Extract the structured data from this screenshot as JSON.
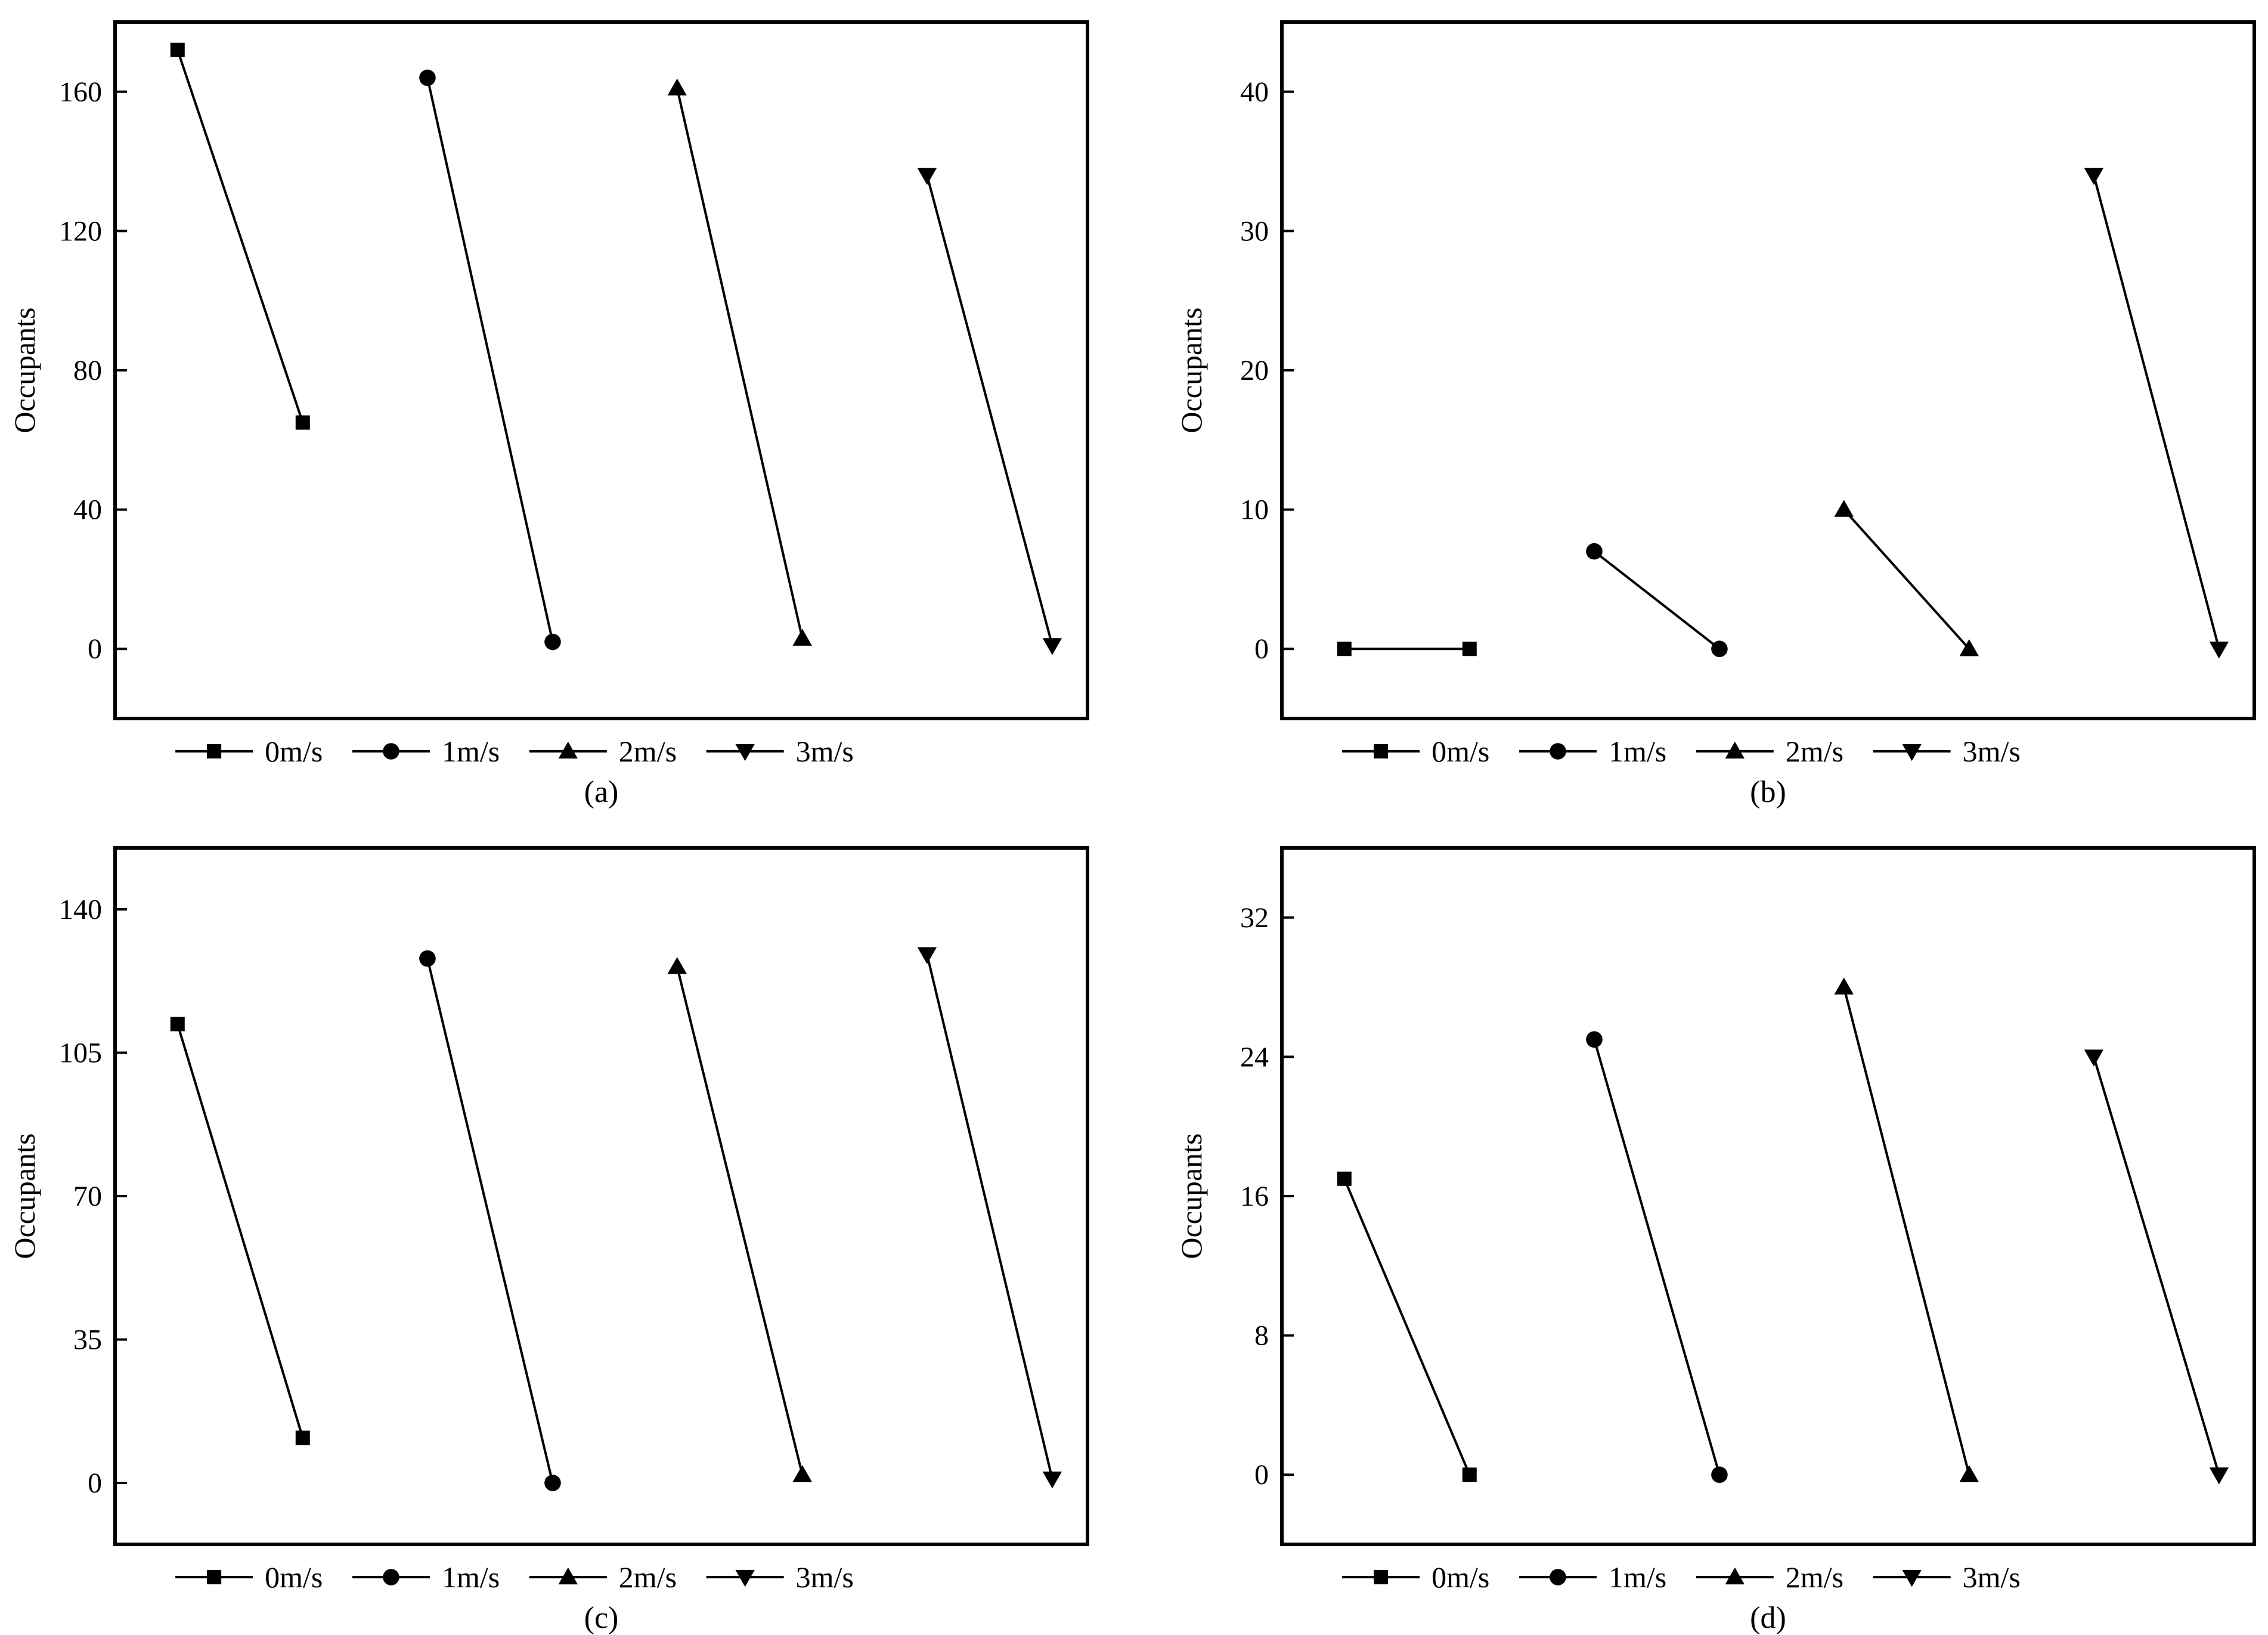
{
  "chart_data": [
    {
      "type": "line",
      "caption": "(a)",
      "ylabel": "Occupants",
      "xlabel": "",
      "ylim": [
        -20,
        180
      ],
      "yticks": [
        "0",
        "40",
        "80",
        "120",
        "160"
      ],
      "grid": false,
      "legend": "bottom",
      "series": [
        {
          "name": "0m/s",
          "marker": "square",
          "values": [
            172,
            65
          ]
        },
        {
          "name": "1m/s",
          "marker": "circle",
          "values": [
            164,
            2
          ]
        },
        {
          "name": "2m/s",
          "marker": "triangle-up",
          "values": [
            161,
            3
          ]
        },
        {
          "name": "3m/s",
          "marker": "triangle-down",
          "values": [
            136,
            1
          ]
        }
      ]
    },
    {
      "type": "line",
      "caption": "(b)",
      "ylabel": "Occupants",
      "xlabel": "",
      "ylim": [
        -5,
        45
      ],
      "yticks": [
        "0",
        "10",
        "20",
        "30",
        "40"
      ],
      "grid": false,
      "legend": "bottom",
      "series": [
        {
          "name": "0m/s",
          "marker": "square",
          "values": [
            0,
            0
          ]
        },
        {
          "name": "1m/s",
          "marker": "circle",
          "values": [
            7,
            0
          ]
        },
        {
          "name": "2m/s",
          "marker": "triangle-up",
          "values": [
            10,
            0
          ]
        },
        {
          "name": "3m/s",
          "marker": "triangle-down",
          "values": [
            34,
            0
          ]
        }
      ]
    },
    {
      "type": "line",
      "caption": "(c)",
      "ylabel": "Occupants",
      "xlabel": "",
      "ylim": [
        -15,
        155
      ],
      "yticks": [
        "0",
        "35",
        "70",
        "105",
        "140"
      ],
      "grid": false,
      "legend": "bottom",
      "series": [
        {
          "name": "0m/s",
          "marker": "square",
          "values": [
            112,
            11
          ]
        },
        {
          "name": "1m/s",
          "marker": "circle",
          "values": [
            128,
            0
          ]
        },
        {
          "name": "2m/s",
          "marker": "triangle-up",
          "values": [
            126,
            2
          ]
        },
        {
          "name": "3m/s",
          "marker": "triangle-down",
          "values": [
            129,
            1
          ]
        }
      ]
    },
    {
      "type": "line",
      "caption": "(d)",
      "ylabel": "Occupants",
      "xlabel": "",
      "ylim": [
        -4,
        36
      ],
      "yticks": [
        "0",
        "8",
        "16",
        "24",
        "32"
      ],
      "grid": false,
      "legend": "bottom",
      "series": [
        {
          "name": "0m/s",
          "marker": "square",
          "values": [
            17,
            0
          ]
        },
        {
          "name": "1m/s",
          "marker": "circle",
          "values": [
            25,
            0
          ]
        },
        {
          "name": "2m/s",
          "marker": "triangle-up",
          "values": [
            28,
            0
          ]
        },
        {
          "name": "3m/s",
          "marker": "triangle-down",
          "values": [
            24,
            0
          ]
        }
      ]
    }
  ]
}
